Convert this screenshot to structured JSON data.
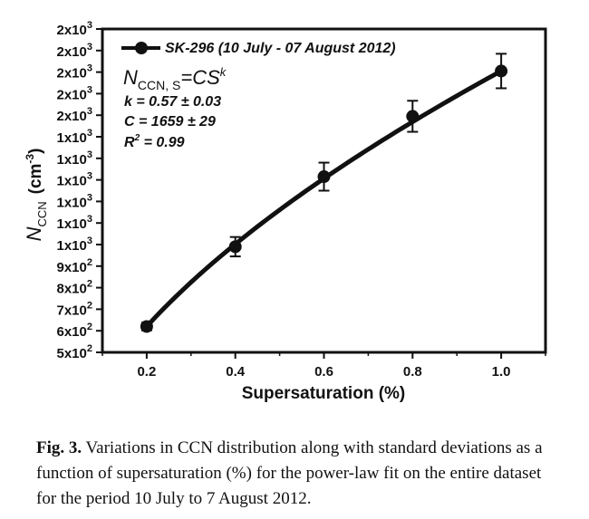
{
  "chart_data": {
    "type": "line",
    "xlabel": "Supersaturation (%)",
    "ylabel": "N",
    "ylabel_sub": "CCN",
    "ylabel_unit_pre": "(cm",
    "ylabel_unit_exp": "-3",
    "ylabel_unit_post": ")",
    "xlim": [
      0.1,
      1.1
    ],
    "ylim": [
      500,
      2000
    ],
    "x_ticks": [
      "0.2",
      "0.4",
      "0.6",
      "0.8",
      "1.0"
    ],
    "x_tick_values": [
      0.2,
      0.4,
      0.6,
      0.8,
      1.0
    ],
    "y_ticks": [
      {
        "value": 500,
        "base": "5x10",
        "exp": "2"
      },
      {
        "value": 600,
        "base": "6x10",
        "exp": "2"
      },
      {
        "value": 700,
        "base": "7x10",
        "exp": "2"
      },
      {
        "value": 800,
        "base": "8x10",
        "exp": "2"
      },
      {
        "value": 900,
        "base": "9x10",
        "exp": "2"
      },
      {
        "value": 1000,
        "base": "1x10",
        "exp": "3"
      },
      {
        "value": 1100,
        "base": "1x10",
        "exp": "3"
      },
      {
        "value": 1200,
        "base": "1x10",
        "exp": "3"
      },
      {
        "value": 1300,
        "base": "1x10",
        "exp": "3"
      },
      {
        "value": 1400,
        "base": "1x10",
        "exp": "3"
      },
      {
        "value": 1500,
        "base": "1x10",
        "exp": "3"
      },
      {
        "value": 1600,
        "base": "2x10",
        "exp": "3"
      },
      {
        "value": 1700,
        "base": "2x10",
        "exp": "3"
      },
      {
        "value": 1800,
        "base": "2x10",
        "exp": "3"
      },
      {
        "value": 1900,
        "base": "2x10",
        "exp": "3"
      },
      {
        "value": 2000,
        "base": "2x10",
        "exp": "3"
      }
    ],
    "series": [
      {
        "name": "SK-296 (10 July - 07 August 2012)",
        "color": "#111111",
        "x": [
          0.2,
          0.4,
          0.6,
          0.8,
          1.0
        ],
        "y": [
          620,
          990,
          1315,
          1595,
          1805
        ],
        "err": [
          18,
          45,
          65,
          72,
          80
        ]
      }
    ],
    "fit": {
      "C": 1659,
      "k": 0.57
    },
    "annotations": {
      "equation_lhs": "N",
      "equation_sub": "CCN, S",
      "equation_rhs": "=CS",
      "equation_exp": "k",
      "k_line": "k = 0.57 ± 0.03",
      "c_line": "C = 1659 ± 29",
      "r2_pre": "R",
      "r2_exp": "2",
      "r2_post": " = 0.99"
    },
    "legend_position": "top-left",
    "grid": false
  },
  "caption": {
    "label": "Fig. 3.",
    "text": " Variations in CCN distribution along with standard deviations as a function of supersaturation (%) for the power-law fit on the entire dataset for the period 10 July to 7 August 2012."
  }
}
